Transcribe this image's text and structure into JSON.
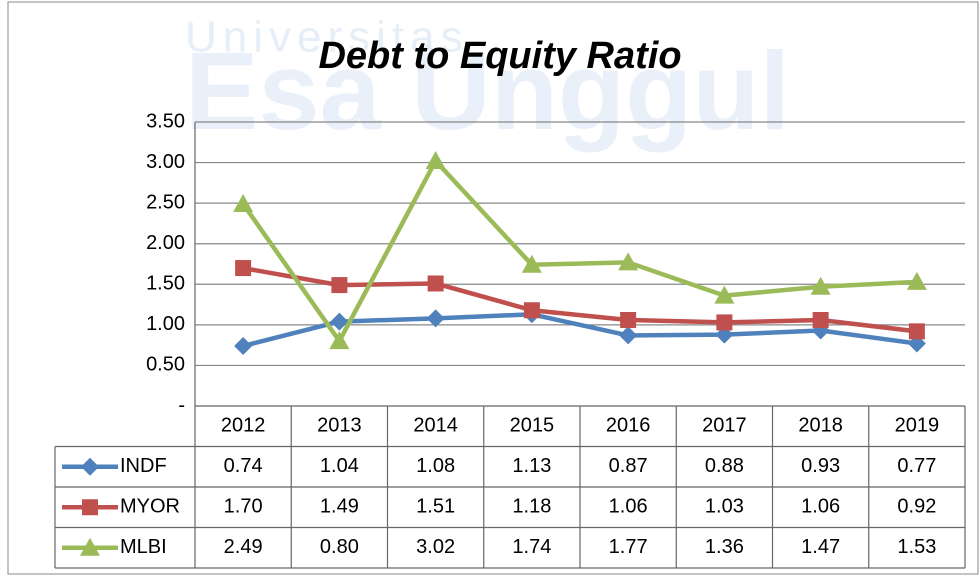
{
  "watermark": [
    "Universitas",
    "Esa Unggul"
  ],
  "chart_data": {
    "type": "line",
    "title": "Debt to Equity Ratio",
    "categories": [
      "2012",
      "2013",
      "2014",
      "2015",
      "2016",
      "2017",
      "2018",
      "2019"
    ],
    "series": [
      {
        "name": "INDF",
        "color": "#4f81bd",
        "marker": "diamond",
        "values": [
          0.74,
          1.04,
          1.08,
          1.13,
          0.87,
          0.88,
          0.93,
          0.77
        ],
        "value_labels": [
          "0.74",
          "1.04",
          "1.08",
          "1.13",
          "0.87",
          "0.88",
          "0.93",
          "0.77"
        ]
      },
      {
        "name": "MYOR",
        "color": "#c0504d",
        "marker": "square",
        "values": [
          1.7,
          1.49,
          1.51,
          1.18,
          1.06,
          1.03,
          1.06,
          0.92
        ],
        "value_labels": [
          "1.70",
          "1.49",
          "1.51",
          "1.18",
          "1.06",
          "1.03",
          "1.06",
          "0.92"
        ]
      },
      {
        "name": "MLBI",
        "color": "#9bbb59",
        "marker": "triangle",
        "values": [
          2.49,
          0.8,
          3.02,
          1.74,
          1.77,
          1.36,
          1.47,
          1.53
        ],
        "value_labels": [
          "2.49",
          "0.80",
          "3.02",
          "1.74",
          "1.77",
          "1.36",
          "1.47",
          "1.53"
        ]
      }
    ],
    "ylim": [
      0,
      3.5
    ],
    "yticks": [
      {
        "value": 0,
        "label": "-"
      },
      {
        "value": 0.5,
        "label": "0.50"
      },
      {
        "value": 1,
        "label": "1.00"
      },
      {
        "value": 1.5,
        "label": "1.50"
      },
      {
        "value": 2,
        "label": "2.00"
      },
      {
        "value": 2.5,
        "label": "2.50"
      },
      {
        "value": 3,
        "label": "3.00"
      },
      {
        "value": 3.5,
        "label": "3.50"
      }
    ],
    "grid": true,
    "data_table": true
  }
}
